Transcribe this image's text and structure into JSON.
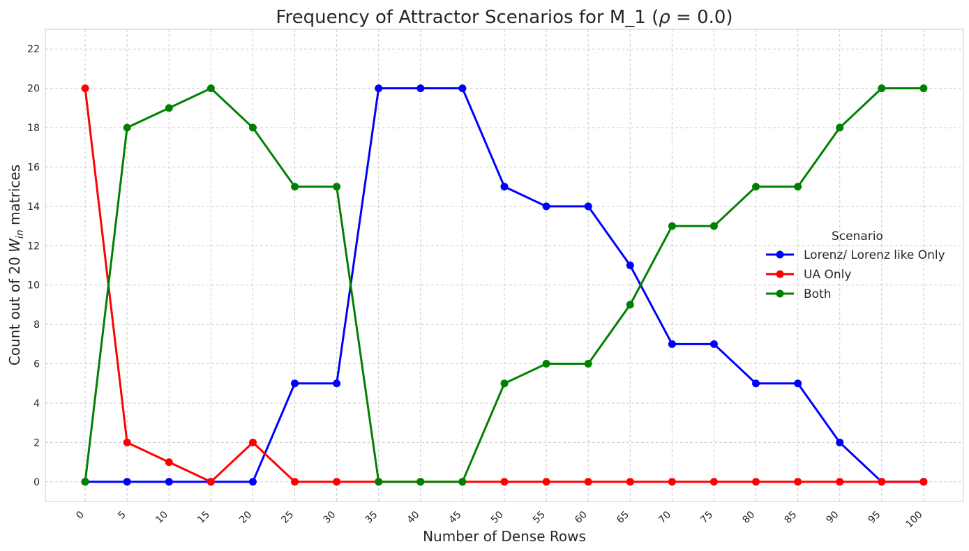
{
  "chart_data": {
    "type": "line",
    "title": "Frequency of Attractor Scenarios for M_1 (ρ = 0.0)",
    "title_parts": {
      "before": "Frequency of Attractor Scenarios for M_1 (",
      "rho": "ρ",
      "after": " = 0.0)"
    },
    "xlabel": "Number of Dense Rows",
    "ylabel": "Count out of 20 W_in matrices",
    "ylabel_parts": {
      "before": "Count out of 20 ",
      "w": "W",
      "sub": "in",
      "after": " matrices"
    },
    "x": [
      0,
      5,
      10,
      15,
      20,
      25,
      30,
      35,
      40,
      45,
      50,
      55,
      60,
      65,
      70,
      75,
      80,
      85,
      90,
      95,
      100
    ],
    "x_tick_labels": [
      "0",
      "5",
      "10",
      "15",
      "20",
      "25",
      "30",
      "35",
      "40",
      "45",
      "50",
      "55",
      "60",
      "65",
      "70",
      "75",
      "80",
      "85",
      "90",
      "95",
      "100"
    ],
    "y_ticks": [
      0,
      2,
      4,
      6,
      8,
      10,
      12,
      14,
      16,
      18,
      20,
      22
    ],
    "y_tick_labels": [
      "0",
      "2",
      "4",
      "6",
      "8",
      "10",
      "12",
      "14",
      "16",
      "18",
      "20",
      "22"
    ],
    "ylim": [
      -1,
      23
    ],
    "xlim": [
      -4.75,
      104.75
    ],
    "grid": true,
    "legend": {
      "title": "Scenario",
      "placement": "center-right"
    },
    "series": [
      {
        "name": "Lorenz/ Lorenz like Only",
        "color": "#0000ff",
        "values": [
          0,
          0,
          0,
          0,
          0,
          5,
          5,
          20,
          20,
          20,
          15,
          14,
          14,
          11,
          7,
          7,
          5,
          5,
          2,
          0,
          0
        ]
      },
      {
        "name": "UA Only",
        "color": "#ff0000",
        "values": [
          20,
          2,
          1,
          0,
          2,
          0,
          0,
          0,
          0,
          0,
          0,
          0,
          0,
          0,
          0,
          0,
          0,
          0,
          0,
          0,
          0
        ]
      },
      {
        "name": "Both",
        "color": "#008000",
        "values": [
          0,
          18,
          19,
          20,
          18,
          15,
          15,
          0,
          0,
          0,
          5,
          6,
          6,
          9,
          13,
          13,
          15,
          15,
          18,
          20,
          20
        ]
      }
    ]
  }
}
